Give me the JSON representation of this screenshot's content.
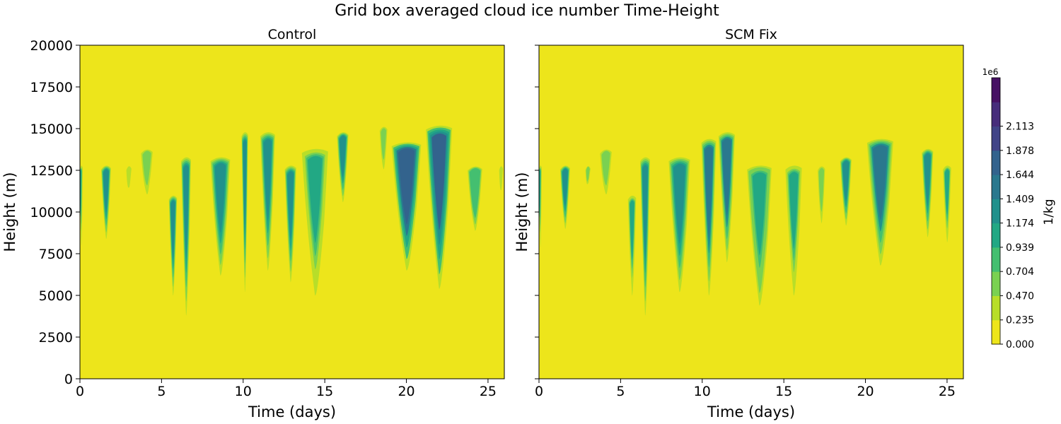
{
  "chart_data": {
    "type": "heatmap",
    "title": "Grid box averaged cloud ice number Time-Height",
    "xlim": [
      0,
      26
    ],
    "ylim": [
      0,
      20000
    ],
    "xticks": [
      0,
      5,
      10,
      15,
      20,
      25
    ],
    "yticks": [
      0,
      2500,
      5000,
      7500,
      10000,
      12500,
      15000,
      17500,
      20000
    ],
    "xlabel": "Time (days)",
    "ylabel": "Height (m)",
    "colorbar": {
      "label": "1/kg",
      "scale_label": "1e6",
      "levels": [
        0.0,
        0.235,
        0.47,
        0.704,
        0.939,
        1.174,
        1.409,
        1.644,
        1.878,
        2.113
      ],
      "tick_labels": [
        "0.000",
        "0.235",
        "0.470",
        "0.704",
        "0.939",
        "1.174",
        "1.409",
        "1.644",
        "1.878",
        "2.113"
      ],
      "colors": [
        "#ede51b",
        "#b8de29",
        "#7ad151",
        "#44bf70",
        "#22a884",
        "#21918c",
        "#2a788e",
        "#33638d",
        "#414487",
        "#472d7b",
        "#471264"
      ]
    },
    "panels": [
      {
        "title": "Control",
        "cloud_events": [
          {
            "t": 0.0,
            "w": 0.35,
            "top": 12800,
            "bottom": 8000,
            "peak": 1.25
          },
          {
            "t": 1.6,
            "w": 0.6,
            "top": 12800,
            "bottom": 8400,
            "peak": 1.45
          },
          {
            "t": 3.0,
            "w": 0.4,
            "top": 12800,
            "bottom": 11200,
            "peak": 0.5
          },
          {
            "t": 4.1,
            "w": 0.8,
            "top": 13800,
            "bottom": 10800,
            "peak": 0.7
          },
          {
            "t": 5.7,
            "w": 0.5,
            "top": 11000,
            "bottom": 5000,
            "peak": 1.45
          },
          {
            "t": 6.5,
            "w": 0.6,
            "top": 13300,
            "bottom": 3800,
            "peak": 1.45
          },
          {
            "t": 8.6,
            "w": 1.2,
            "top": 13300,
            "bottom": 6200,
            "peak": 1.45
          },
          {
            "t": 10.1,
            "w": 0.4,
            "top": 14800,
            "bottom": 5200,
            "peak": 1.65
          },
          {
            "t": 11.5,
            "w": 0.9,
            "top": 14800,
            "bottom": 6500,
            "peak": 1.65
          },
          {
            "t": 12.9,
            "w": 0.7,
            "top": 12800,
            "bottom": 5800,
            "peak": 1.4
          },
          {
            "t": 14.4,
            "w": 1.6,
            "top": 13800,
            "bottom": 5000,
            "peak": 1.3
          },
          {
            "t": 16.1,
            "w": 0.7,
            "top": 14800,
            "bottom": 10600,
            "peak": 1.4
          },
          {
            "t": 18.6,
            "w": 0.6,
            "top": 15200,
            "bottom": 12000,
            "peak": 0.6
          },
          {
            "t": 20.0,
            "w": 1.8,
            "top": 14200,
            "bottom": 6500,
            "peak": 2.1
          },
          {
            "t": 22.0,
            "w": 1.6,
            "top": 15200,
            "bottom": 5400,
            "peak": 2.0
          },
          {
            "t": 24.2,
            "w": 1.0,
            "top": 12800,
            "bottom": 8500,
            "peak": 1.1
          },
          {
            "t": 25.8,
            "w": 0.3,
            "top": 12800,
            "bottom": 11000,
            "peak": 0.5
          }
        ]
      },
      {
        "title": "SCM Fix",
        "cloud_events": [
          {
            "t": 0.0,
            "w": 0.35,
            "top": 12800,
            "bottom": 7900,
            "peak": 1.25
          },
          {
            "t": 1.6,
            "w": 0.6,
            "top": 12800,
            "bottom": 9000,
            "peak": 1.45
          },
          {
            "t": 3.0,
            "w": 0.4,
            "top": 12800,
            "bottom": 11500,
            "peak": 0.6
          },
          {
            "t": 4.1,
            "w": 0.8,
            "top": 13800,
            "bottom": 10800,
            "peak": 0.7
          },
          {
            "t": 5.7,
            "w": 0.5,
            "top": 11000,
            "bottom": 5000,
            "peak": 1.2
          },
          {
            "t": 6.5,
            "w": 0.6,
            "top": 13300,
            "bottom": 3800,
            "peak": 1.45
          },
          {
            "t": 8.6,
            "w": 1.3,
            "top": 13300,
            "bottom": 5200,
            "peak": 1.55
          },
          {
            "t": 10.4,
            "w": 0.9,
            "top": 14400,
            "bottom": 5000,
            "peak": 1.75
          },
          {
            "t": 11.5,
            "w": 1.0,
            "top": 14800,
            "bottom": 7000,
            "peak": 1.8
          },
          {
            "t": 13.5,
            "w": 1.5,
            "top": 12800,
            "bottom": 4400,
            "peak": 1.35
          },
          {
            "t": 15.6,
            "w": 1.0,
            "top": 12800,
            "bottom": 5000,
            "peak": 1.3
          },
          {
            "t": 17.3,
            "w": 0.5,
            "top": 12800,
            "bottom": 9000,
            "peak": 0.8
          },
          {
            "t": 18.8,
            "w": 0.7,
            "top": 13300,
            "bottom": 9200,
            "peak": 1.4
          },
          {
            "t": 20.9,
            "w": 1.6,
            "top": 14400,
            "bottom": 6800,
            "peak": 1.75
          },
          {
            "t": 23.8,
            "w": 0.7,
            "top": 13800,
            "bottom": 8500,
            "peak": 1.5
          },
          {
            "t": 25.0,
            "w": 0.5,
            "top": 12800,
            "bottom": 8200,
            "peak": 1.2
          }
        ]
      }
    ]
  }
}
